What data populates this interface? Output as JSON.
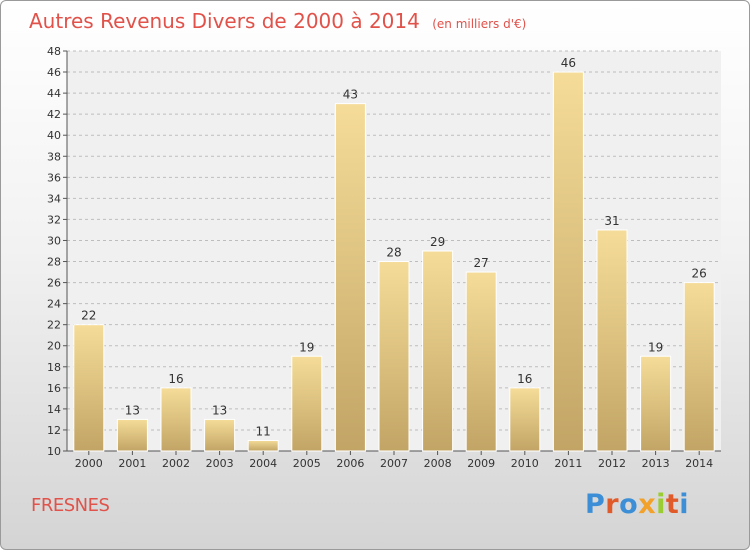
{
  "title": "Autres Revenus Divers de 2000 à 2014",
  "subtitle": "(en milliers d'€)",
  "city": "FRESNES",
  "logo": {
    "text": "Proxiti",
    "colors": [
      "#3c8fd6",
      "#e05a2a",
      "#3c8fd6",
      "#f2a12a",
      "#9acd32",
      "#e05a2a",
      "#3c8fd6"
    ]
  },
  "colors": {
    "title": "#e0524a",
    "bar_top": "#f5dc98",
    "bar_bottom": "#c2a566"
  },
  "chart_data": {
    "type": "bar",
    "categories": [
      "2000",
      "2001",
      "2002",
      "2003",
      "2004",
      "2005",
      "2006",
      "2007",
      "2008",
      "2009",
      "2010",
      "2011",
      "2012",
      "2013",
      "2014"
    ],
    "values": [
      22,
      13,
      16,
      13,
      11,
      19,
      43,
      28,
      29,
      27,
      16,
      46,
      31,
      19,
      26
    ],
    "ylim": [
      10,
      48
    ],
    "yticks": [
      10,
      12,
      14,
      16,
      18,
      20,
      22,
      24,
      26,
      28,
      30,
      32,
      34,
      36,
      38,
      40,
      42,
      44,
      46,
      48
    ],
    "grid": true,
    "xlabel": "",
    "ylabel": ""
  }
}
